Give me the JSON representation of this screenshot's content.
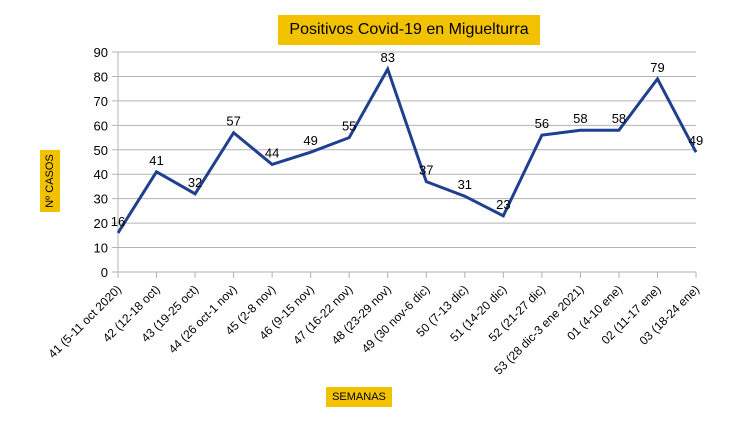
{
  "colors": {
    "line": "#1f3f8f",
    "label_bg": "#f2c200",
    "grid": "#b3b3b3"
  },
  "chart_data": {
    "type": "line",
    "title": "Positivos Covid-19 en Miguelturra",
    "xlabel": "SEMANAS",
    "ylabel": "Nº CASOS",
    "ylim": [
      0,
      90
    ],
    "yticks": [
      0,
      10,
      20,
      30,
      40,
      50,
      60,
      70,
      80,
      90
    ],
    "grid": "horizontal",
    "categories": [
      "41 (5-11 oct 2020)",
      "42 (12-18 oct)",
      "43 (19-25 oct)",
      "44 (26 oct-1 nov)",
      "45 (2-8 nov)",
      "46 (9-15 nov)",
      "47 (16-22 nov)",
      "48 (23-29 nov)",
      "49 (30 nov-6 dic)",
      "50 (7-13 dic)",
      "51 (14-20 dic)",
      "52 (21-27 dic)",
      "53 (28 dic-3 ene 2021)",
      "01 (4-10 ene)",
      "02 (11-17 ene)",
      "03 (18-24 ene)"
    ],
    "values": [
      16,
      41,
      32,
      57,
      44,
      49,
      55,
      83,
      37,
      31,
      23,
      56,
      58,
      58,
      79,
      49
    ]
  }
}
